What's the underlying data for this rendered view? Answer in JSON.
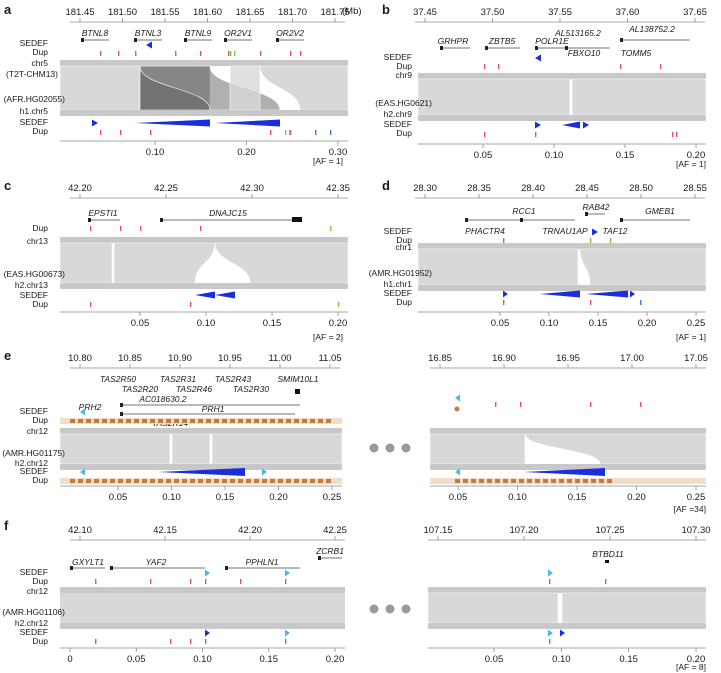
{
  "labels": {
    "sedef": "SEDEF",
    "dup": "Dup",
    "mb": "(Mb)"
  },
  "colors": {
    "ribbon": "#d8d8d8",
    "ribbon_dark": "#8f8f8f",
    "ribbon_darker": "#5a5a5a",
    "bar": "#c8c8c8",
    "sedef_blue": "#1a2ee0",
    "sedef_light": "#4fb4e6",
    "dup_red": "#e5506a",
    "dup_green": "#7ac943",
    "dup_orange": "#c87a3a",
    "dup_blue": "#3a7cd8"
  },
  "panels": [
    {
      "id": "a",
      "letter": "a",
      "top_ticks": [
        "181.45",
        "181.50",
        "181.55",
        "181.60",
        "181.65",
        "181.70",
        "181.75"
      ],
      "bottom_ticks": [
        "0.10",
        "0.20",
        "0.30"
      ],
      "genes": [
        "BTNL8",
        "BTNL3",
        "BTNL9",
        "OR2V1",
        "OR2V2"
      ],
      "ref_labels": [
        "chr5",
        "(T2T-CHM13)"
      ],
      "hap_labels": [
        "(AFR.HG02055)",
        "h1.chr5"
      ],
      "af": "[AF = 1]"
    },
    {
      "id": "b",
      "letter": "b",
      "top_ticks": [
        "37.45",
        "37.50",
        "37.55",
        "37.60",
        "37.65"
      ],
      "bottom_ticks": [
        "0.05",
        "0.10",
        "0.15",
        "0.20"
      ],
      "genes": [
        "GRHPR",
        "ZBTB5",
        "POLR1E",
        "AL513165.2",
        "AL138752.2",
        "FBXO10",
        "TOMM5"
      ],
      "ref_labels": [
        "chr9"
      ],
      "hap_labels": [
        "(EAS.HG0621)",
        "h2.chr9"
      ],
      "af": "[AF = 1]"
    },
    {
      "id": "c",
      "letter": "c",
      "top_ticks": [
        "42.20",
        "42.25",
        "42.30",
        "42.35"
      ],
      "bottom_ticks": [
        "0.05",
        "0.10",
        "0.15",
        "0.20"
      ],
      "genes": [
        "EPSTI1",
        "DNAJC15"
      ],
      "ref_labels": [
        "chr13"
      ],
      "hap_labels": [
        "(EAS.HG00673)",
        "h2.chr13"
      ],
      "af": "[AF = 2]"
    },
    {
      "id": "d",
      "letter": "d",
      "top_ticks": [
        "28.30",
        "28.35",
        "28.40",
        "28.45",
        "28.50",
        "28.55"
      ],
      "bottom_ticks": [
        "0.05",
        "0.10",
        "0.15",
        "0.20",
        "0.25"
      ],
      "genes": [
        "RCC1",
        "RAB42",
        "GMEB1",
        "PHACTR4",
        "TRNAU1AP",
        "TAF12"
      ],
      "ref_labels": [
        "chr1"
      ],
      "hap_labels": [
        "(AMR.HG01952)",
        "h1.chr1"
      ],
      "af": "[AF = 1]"
    },
    {
      "id": "e",
      "letter": "e",
      "top_ticks": [
        "10.80",
        "10.85",
        "10.90",
        "10.95",
        "11.00",
        "11.05"
      ],
      "top_ticks_right": [
        "16.85",
        "16.90",
        "16.95",
        "17.00",
        "17.05"
      ],
      "bottom_ticks": [
        "0.05",
        "0.10",
        "0.15",
        "0.20",
        "0.25"
      ],
      "bottom_ticks_right": [
        "0.05",
        "0.10",
        "0.15",
        "0.20",
        "0.25"
      ],
      "genes": [
        "TAS2R50",
        "TAS2R31",
        "TAS2R43",
        "SMIM10L1",
        "TAS2R20",
        "TAS2R46",
        "TAS2R30",
        "AC018630.2",
        "PRH1",
        "PRH2",
        "TAS2R14"
      ],
      "ref_labels": [
        "chr12"
      ],
      "hap_labels": [
        "(AMR.HG01175)",
        "h2.chr12"
      ],
      "af": "[AF =34]"
    },
    {
      "id": "f",
      "letter": "f",
      "top_ticks": [
        "42.10",
        "42.15",
        "42.20",
        "42.25"
      ],
      "top_ticks_right": [
        "107.15",
        "107.20",
        "107.25",
        "107.30"
      ],
      "bottom_ticks": [
        "0",
        "0.05",
        "0.10",
        "0.15",
        "0.20"
      ],
      "bottom_ticks_right": [
        "0.05",
        "0.10",
        "0.15",
        "0.20"
      ],
      "genes": [
        "GXYLT1",
        "YAF2",
        "PPHLN1",
        "ZCRB1",
        "BTBD11"
      ],
      "ref_labels": [
        "chr12"
      ],
      "hap_labels": [
        "(AMR.HG01106)",
        "h2.chr12"
      ],
      "af": "[AF = 8]"
    }
  ]
}
